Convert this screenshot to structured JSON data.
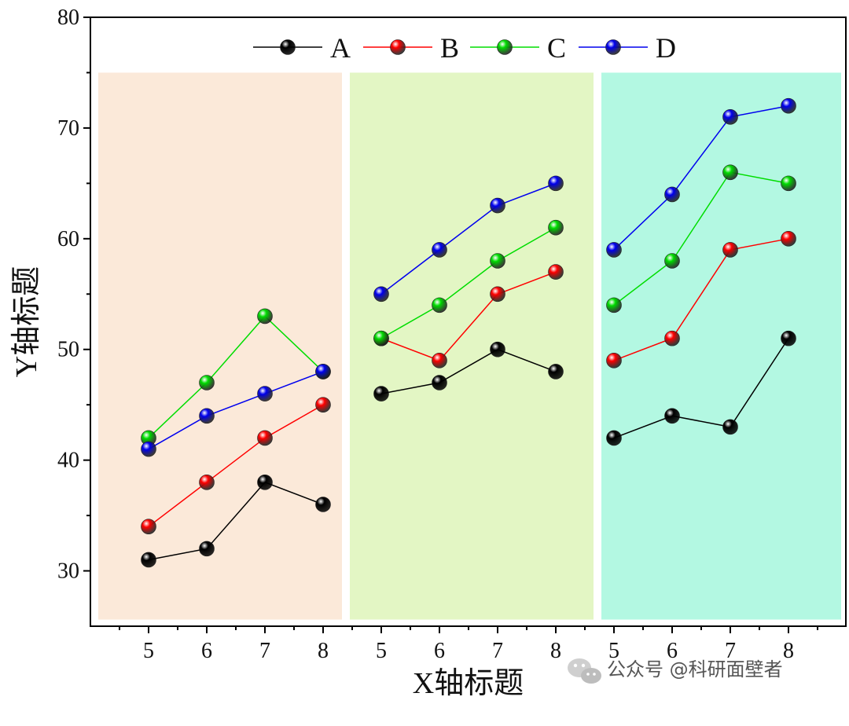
{
  "chart_data": {
    "type": "line",
    "xlabel": "X轴标题",
    "ylabel": "Y轴标题",
    "ylim": [
      25,
      80
    ],
    "y_ticks": [
      30,
      40,
      50,
      60,
      70,
      80
    ],
    "x_tick_labels": [
      "5",
      "6",
      "7",
      "8",
      "5",
      "6",
      "7",
      "8",
      "5",
      "6",
      "7",
      "8"
    ],
    "legend_position": "top",
    "panels": [
      {
        "background": "#fbe9d9",
        "x": [
          5,
          6,
          7,
          8
        ],
        "series": [
          {
            "name": "A",
            "color": "#000000",
            "values": [
              31,
              32,
              38,
              36
            ]
          },
          {
            "name": "B",
            "color": "#ff0000",
            "values": [
              34,
              38,
              42,
              45
            ]
          },
          {
            "name": "C",
            "color": "#00dd00",
            "values": [
              42,
              47,
              53,
              48
            ]
          },
          {
            "name": "D",
            "color": "#0000ee",
            "values": [
              41,
              44,
              46,
              48
            ]
          }
        ]
      },
      {
        "background": "#e3f6c4",
        "x": [
          5,
          6,
          7,
          8
        ],
        "series": [
          {
            "name": "A",
            "color": "#000000",
            "values": [
              46,
              47,
              50,
              48
            ]
          },
          {
            "name": "B",
            "color": "#ff0000",
            "values": [
              51,
              49,
              55,
              57
            ]
          },
          {
            "name": "C",
            "color": "#00dd00",
            "values": [
              51,
              54,
              58,
              61
            ]
          },
          {
            "name": "D",
            "color": "#0000ee",
            "values": [
              55,
              59,
              63,
              65
            ]
          }
        ]
      },
      {
        "background": "#b3f8e2",
        "x": [
          5,
          6,
          7,
          8
        ],
        "series": [
          {
            "name": "A",
            "color": "#000000",
            "values": [
              42,
              44,
              43,
              51
            ]
          },
          {
            "name": "B",
            "color": "#ff0000",
            "values": [
              49,
              51,
              59,
              60
            ]
          },
          {
            "name": "C",
            "color": "#00dd00",
            "values": [
              54,
              58,
              66,
              65
            ]
          },
          {
            "name": "D",
            "color": "#0000ee",
            "values": [
              59,
              64,
              71,
              72
            ]
          }
        ]
      }
    ],
    "legend": [
      "A",
      "B",
      "C",
      "D"
    ]
  },
  "watermark": "公众号 @科研面壁者"
}
